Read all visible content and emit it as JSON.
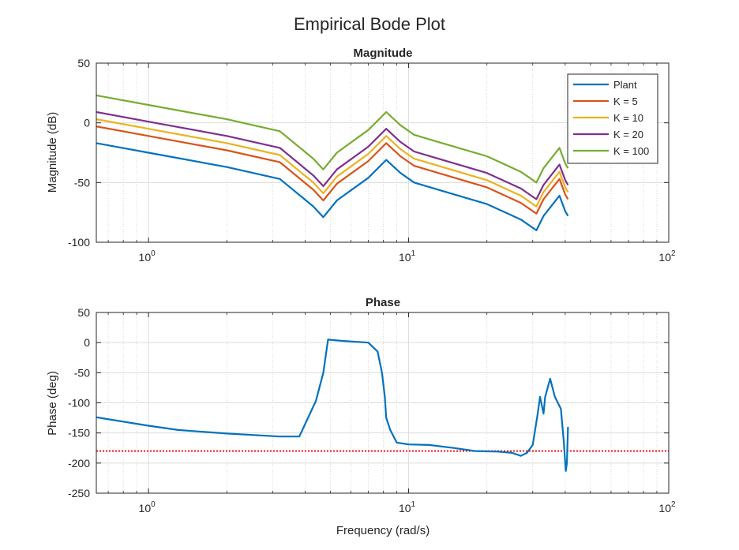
{
  "figure": {
    "title": "Empirical Bode Plot"
  },
  "chart_data": [
    {
      "type": "line",
      "title": "Magnitude",
      "xlabel": "",
      "ylabel": "Magnitude (dB)",
      "xscale": "log",
      "xlim": [
        0.63,
        100
      ],
      "ylim": [
        -100,
        50
      ],
      "yticks": [
        "-100",
        "-50",
        "0",
        "50"
      ],
      "xticks": [
        {
          "base": "10",
          "exp": "0",
          "value": 1
        },
        {
          "base": "10",
          "exp": "1",
          "value": 10
        },
        {
          "base": "10",
          "exp": "2",
          "value": 100
        }
      ],
      "grid": true,
      "legend": "top-right",
      "series": [
        {
          "name": "Plant",
          "color": "#0072BD",
          "x": [
            0.63,
            1.0,
            2.0,
            3.2,
            4.3,
            4.7,
            5.3,
            7.0,
            8.2,
            9.3,
            10.5,
            13.0,
            20.0,
            27.0,
            31.0,
            33.0,
            38.0,
            40.0,
            41.0
          ],
          "y": [
            -17,
            -25,
            -37,
            -47,
            -70,
            -79,
            -65,
            -46,
            -31,
            -42,
            -50,
            -56,
            -68,
            -81,
            -90,
            -78,
            -61,
            -74,
            -78
          ]
        },
        {
          "name": "K = 5",
          "color": "#D95319",
          "x": [
            0.63,
            1.0,
            2.0,
            3.2,
            4.3,
            4.7,
            5.3,
            7.0,
            8.2,
            9.3,
            10.5,
            13.0,
            20.0,
            27.0,
            31.0,
            33.0,
            38.0,
            40.0,
            41.0
          ],
          "y": [
            -3,
            -11,
            -23,
            -33,
            -56,
            -65,
            -51,
            -32,
            -17,
            -28,
            -36,
            -42,
            -54,
            -67,
            -76,
            -64,
            -47,
            -60,
            -64
          ]
        },
        {
          "name": "K = 10",
          "color": "#EDB120",
          "x": [
            0.63,
            1.0,
            2.0,
            3.2,
            4.3,
            4.7,
            5.3,
            7.0,
            8.2,
            9.3,
            10.5,
            13.0,
            20.0,
            27.0,
            31.0,
            33.0,
            38.0,
            40.0,
            41.0
          ],
          "y": [
            3,
            -5,
            -17,
            -27,
            -50,
            -59,
            -45,
            -26,
            -11,
            -22,
            -30,
            -36,
            -48,
            -61,
            -70,
            -58,
            -41,
            -54,
            -58
          ]
        },
        {
          "name": "K = 20",
          "color": "#7E2F8E",
          "x": [
            0.63,
            1.0,
            2.0,
            3.2,
            4.3,
            4.7,
            5.3,
            7.0,
            8.2,
            9.3,
            10.5,
            13.0,
            20.0,
            27.0,
            31.0,
            33.0,
            38.0,
            40.0,
            41.0
          ],
          "y": [
            9,
            1,
            -11,
            -21,
            -44,
            -53,
            -39,
            -20,
            -5,
            -16,
            -24,
            -30,
            -42,
            -55,
            -64,
            -52,
            -35,
            -48,
            -52
          ]
        },
        {
          "name": "K = 100",
          "color": "#77AC30",
          "x": [
            0.63,
            1.0,
            2.0,
            3.2,
            4.3,
            4.7,
            5.3,
            7.0,
            8.2,
            9.3,
            10.5,
            13.0,
            20.0,
            27.0,
            31.0,
            33.0,
            38.0,
            40.0,
            41.0
          ],
          "y": [
            23,
            15,
            3,
            -7,
            -30,
            -39,
            -25,
            -6,
            9,
            -2,
            -10,
            -16,
            -28,
            -41,
            -50,
            -38,
            -21,
            -34,
            -38
          ]
        }
      ]
    },
    {
      "type": "line",
      "title": "Phase",
      "xlabel": "Frequency (rad/s)",
      "ylabel": "Phase (deg)",
      "xscale": "log",
      "xlim": [
        0.63,
        100
      ],
      "ylim": [
        -250,
        50
      ],
      "yticks": [
        "-250",
        "-200",
        "-150",
        "-100",
        "-50",
        "0",
        "50"
      ],
      "xticks": [
        {
          "base": "10",
          "exp": "0",
          "value": 1
        },
        {
          "base": "10",
          "exp": "1",
          "value": 10
        },
        {
          "base": "10",
          "exp": "2",
          "value": 100
        }
      ],
      "grid": true,
      "reference_line": {
        "y": -180,
        "color": "#FF0000",
        "style": "dotted"
      },
      "series": [
        {
          "color": "#0072BD",
          "x": [
            0.63,
            1.0,
            1.3,
            2.0,
            3.2,
            3.8,
            4.4,
            4.7,
            4.9,
            5.5,
            7.0,
            7.6,
            7.9,
            8.1,
            8.2,
            8.5,
            9.0,
            10.0,
            12.0,
            15.0,
            18.0,
            22.0,
            25.0,
            27.0,
            28.5,
            30.0,
            31.3,
            32.0,
            33.0,
            33.5,
            35.0,
            36.5,
            38.5,
            39.5,
            40.2,
            40.6,
            41.0
          ],
          "y": [
            -124,
            -138,
            -145,
            -151,
            -156,
            -156,
            -97,
            -50,
            5,
            3,
            0,
            -15,
            -50,
            -90,
            -125,
            -145,
            -166,
            -169,
            -170,
            -175,
            -180,
            -181,
            -183,
            -188,
            -183,
            -170,
            -120,
            -90,
            -118,
            -90,
            -60,
            -90,
            -110,
            -165,
            -213,
            -200,
            -140
          ]
        }
      ]
    }
  ]
}
